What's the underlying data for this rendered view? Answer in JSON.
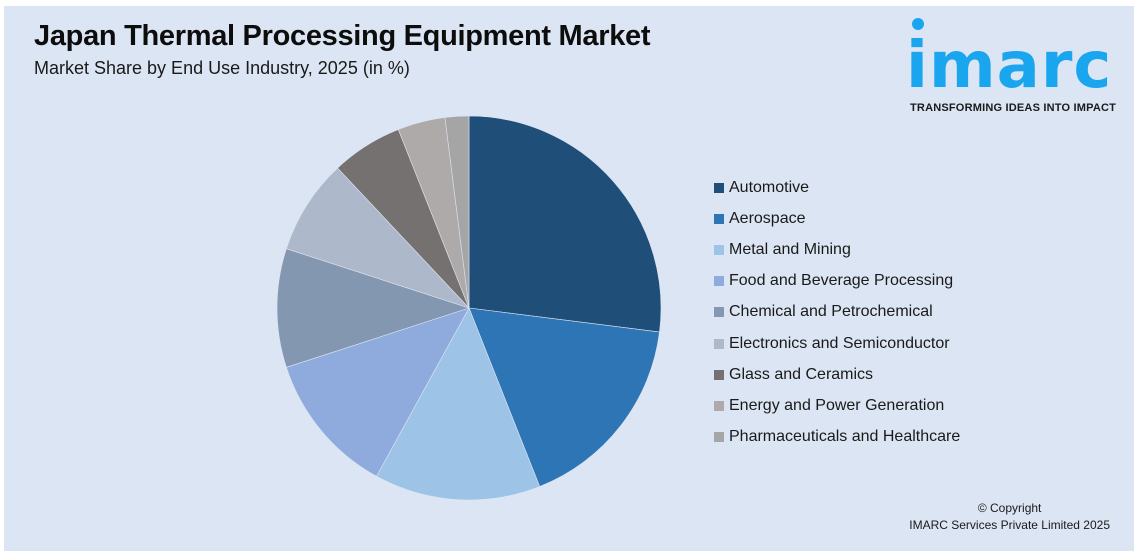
{
  "header": {
    "title": "Japan Thermal Processing Equipment Market",
    "subtitle": "Market Share by End Use Industry, 2025 (in %)"
  },
  "logo": {
    "wordmark": "imarc",
    "tagline": "TRANSFORMING IDEAS INTO IMPACT",
    "color": "#1aa6ef"
  },
  "footer": {
    "copyright_line1": "© Copyright",
    "copyright_line2": "IMARC Services Private Limited 2025"
  },
  "chart_data": {
    "type": "pie",
    "title": "Japan Thermal Processing Equipment Market",
    "subtitle": "Market Share by End Use Industry, 2025 (in %)",
    "legend_position": "right",
    "start_angle_deg": 0,
    "direction": "clockwise",
    "categories": [
      "Automotive",
      "Aerospace",
      "Metal and Mining",
      "Food and Beverage Processing",
      "Chemical and Petrochemical",
      "Electronics and Semiconductor",
      "Glass and Ceramics",
      "Energy and Power Generation",
      "Pharmaceuticals and Healthcare"
    ],
    "values": [
      27,
      17,
      14,
      12,
      10,
      8,
      6,
      4,
      2
    ],
    "colors": [
      "#1f4e79",
      "#2e75b6",
      "#9dc3e6",
      "#8faadc",
      "#8497b0",
      "#adb9ca",
      "#767171",
      "#aeaaaa",
      "#a5a5a5"
    ],
    "data_labels_shown": false
  }
}
